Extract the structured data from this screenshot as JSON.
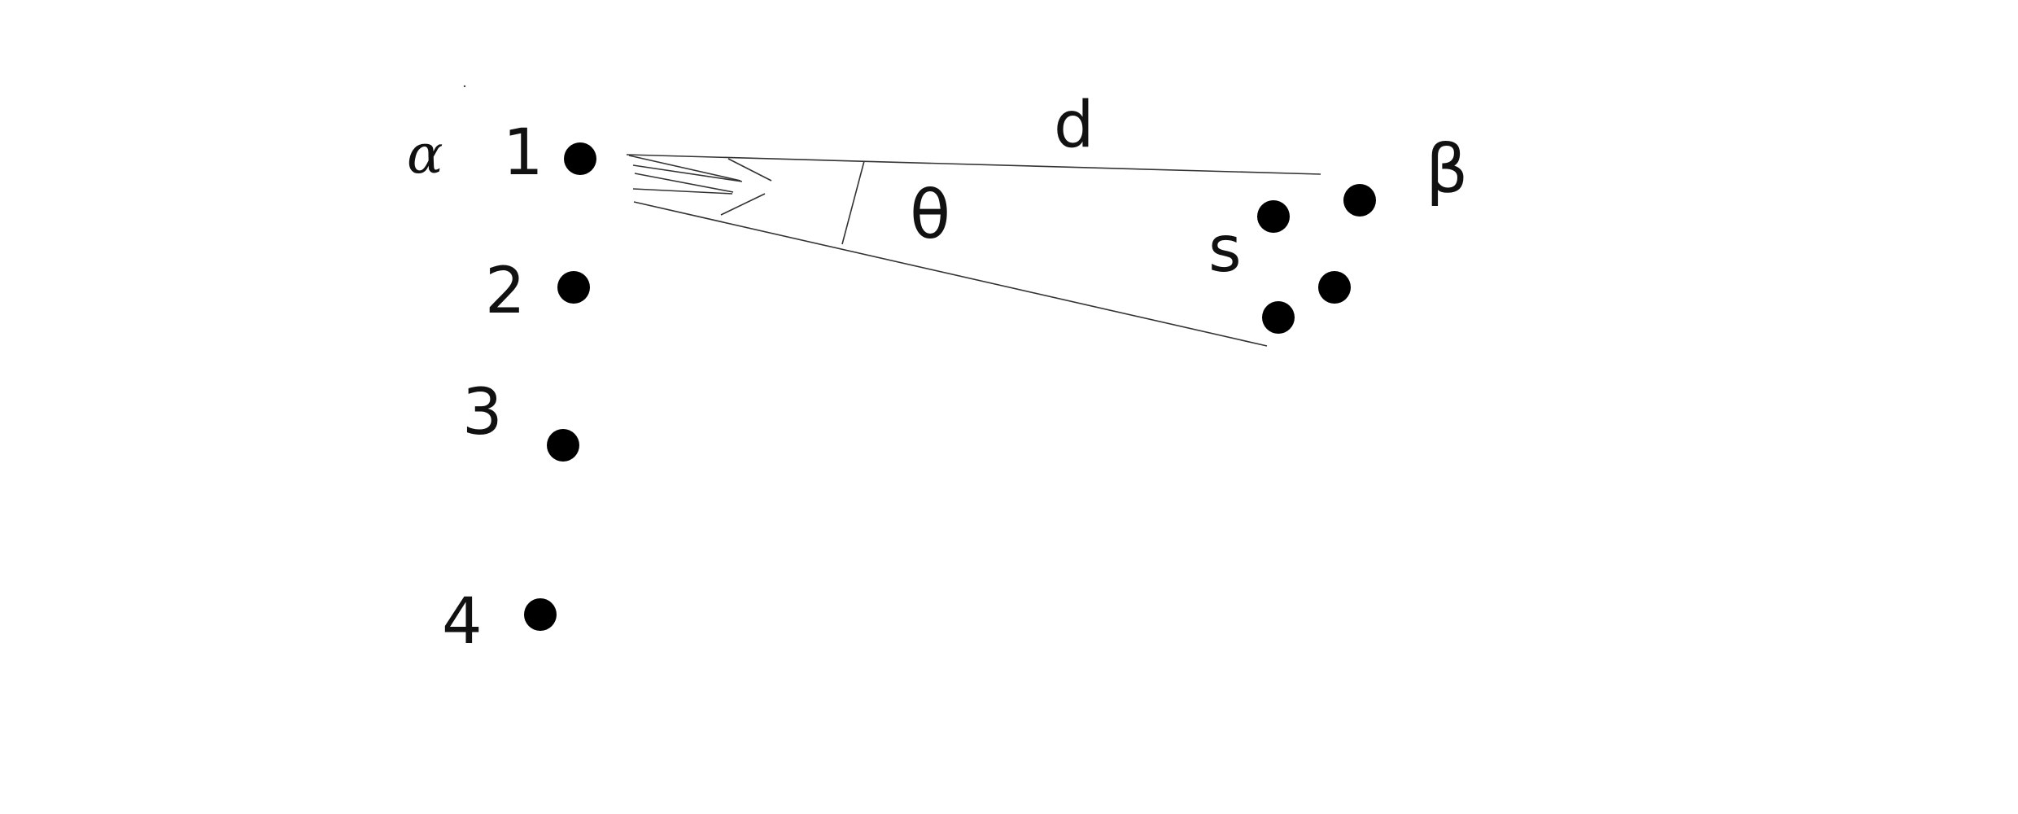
{
  "labels": {
    "alpha": "α",
    "beta": "β",
    "d": "d",
    "theta": "θ",
    "s": "s",
    "n1": "1",
    "n2": "2",
    "n3": "3",
    "n4": "4"
  },
  "colors": {
    "ink": "#000000",
    "line": "#333333",
    "background": "#ffffff"
  }
}
